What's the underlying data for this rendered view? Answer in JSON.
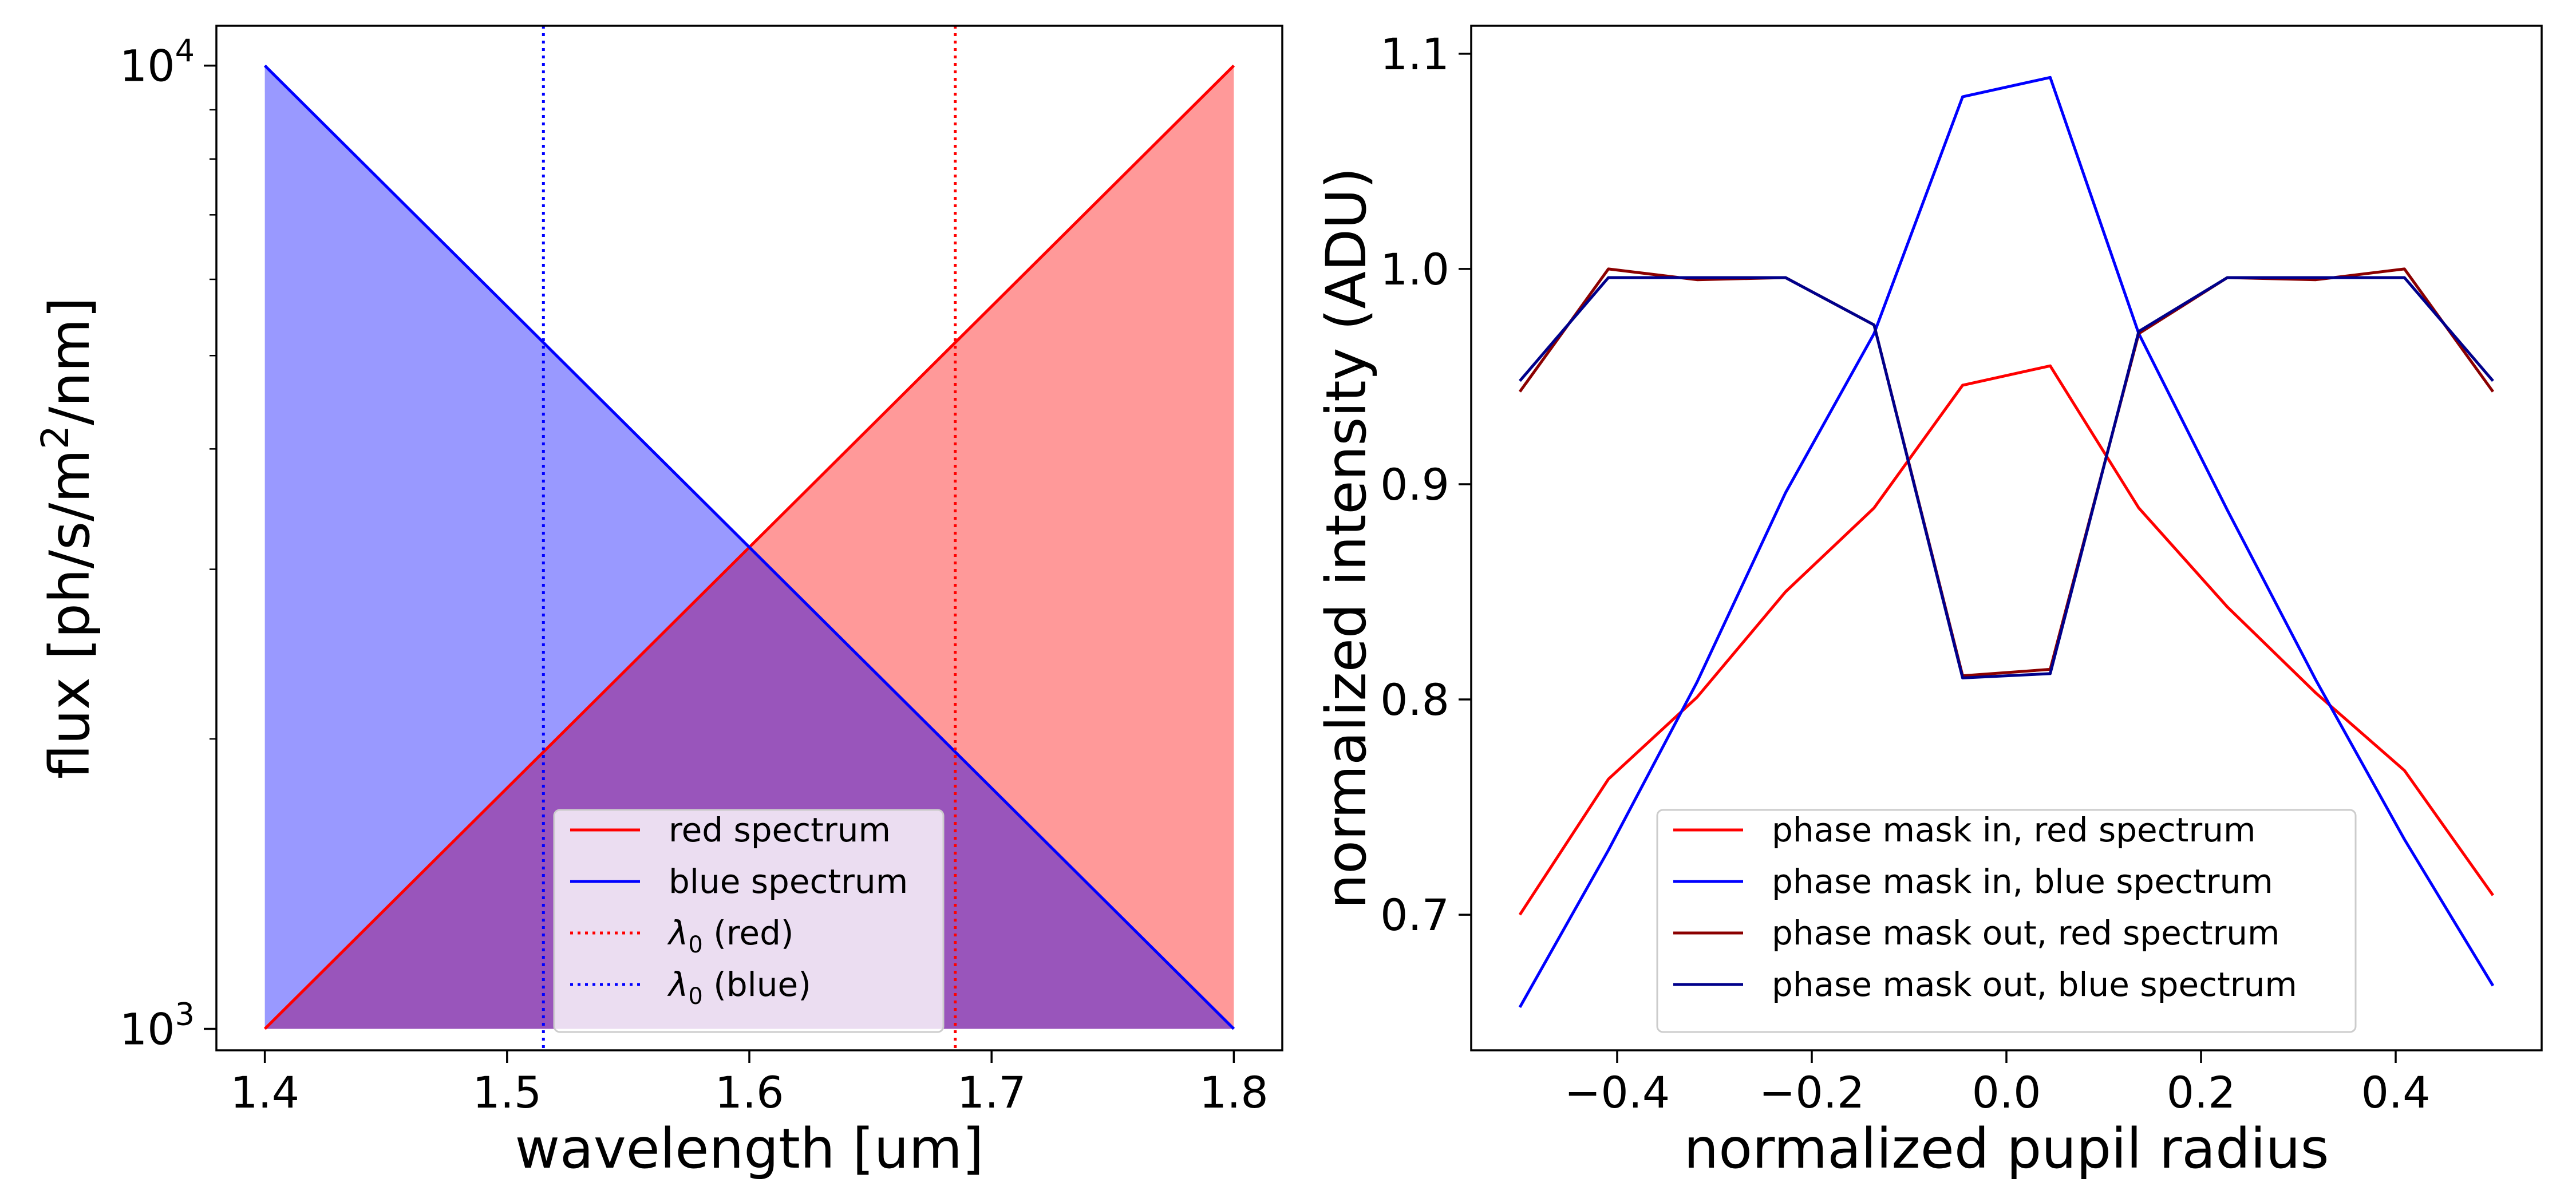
{
  "chart_data": [
    {
      "type": "area",
      "xlabel": "wavelength [um]",
      "ylabel_parts": [
        "flux [ph/s/m",
        "2",
        "/nm]"
      ],
      "xlim": [
        1.38,
        1.82
      ],
      "ylim": [
        950,
        11000
      ],
      "y_scale": "log",
      "x_ticks": [
        1.4,
        1.5,
        1.6,
        1.7,
        1.8
      ],
      "x_tick_labels": [
        "1.4",
        "1.5",
        "1.6",
        "1.7",
        "1.8"
      ],
      "y_ticks": [
        1000,
        10000
      ],
      "y_tick_labels": [
        {
          "base": "10",
          "exp": "3"
        },
        {
          "base": "10",
          "exp": "4"
        }
      ],
      "fill_floor": 1000,
      "series": [
        {
          "name": "red spectrum",
          "color": "#ff0000",
          "fill": "#ff9999",
          "x": [
            1.4,
            1.8
          ],
          "y": [
            1000,
            10000
          ]
        },
        {
          "name": "blue spectrum",
          "color": "#0000ff",
          "fill": "#9999ff",
          "x": [
            1.4,
            1.8
          ],
          "y": [
            10000,
            1000
          ]
        }
      ],
      "overlap_fill": "#9955bb",
      "vlines": [
        {
          "name_sym": "λ",
          "name_sub": "0",
          "name_rest": " (red)",
          "x": 1.685,
          "color": "#ff0000"
        },
        {
          "name_sym": "λ",
          "name_sub": "0",
          "name_rest": " (blue)",
          "x": 1.515,
          "color": "#0000ff"
        }
      ],
      "legend_placement": "lower-center"
    },
    {
      "type": "line",
      "xlabel": "normalized pupil radius",
      "ylabel": "normalized intensity (ADU)",
      "xlim": [
        -0.55,
        0.55
      ],
      "ylim": [
        0.637,
        1.113
      ],
      "x_ticks": [
        -0.4,
        -0.2,
        0.0,
        0.2,
        0.4
      ],
      "x_tick_labels": [
        "−0.4",
        "−0.2",
        "0.0",
        "0.2",
        "0.4"
      ],
      "y_ticks": [
        0.7,
        0.8,
        0.9,
        1.0,
        1.1
      ],
      "y_tick_labels": [
        "0.7",
        "0.8",
        "0.9",
        "1.0",
        "1.1"
      ],
      "x": [
        -0.5,
        -0.409,
        -0.318,
        -0.227,
        -0.136,
        -0.045,
        0.045,
        0.136,
        0.227,
        0.318,
        0.409,
        0.5
      ],
      "series": [
        {
          "name": "phase mask in, red spectrum",
          "color": "#ff0000",
          "values": [
            0.7,
            0.763,
            0.801,
            0.85,
            0.889,
            0.946,
            0.955,
            0.889,
            0.843,
            0.803,
            0.767,
            0.709
          ]
        },
        {
          "name": "phase mask in, blue spectrum",
          "color": "#0000ff",
          "values": [
            0.657,
            0.73,
            0.808,
            0.896,
            0.97,
            1.08,
            1.089,
            0.97,
            0.888,
            0.809,
            0.735,
            0.667
          ]
        },
        {
          "name": "phase mask out, red spectrum",
          "color": "#8b0000",
          "values": [
            0.943,
            1.0,
            0.995,
            0.996,
            0.974,
            0.811,
            0.814,
            0.97,
            0.996,
            0.995,
            1.0,
            0.943
          ]
        },
        {
          "name": "phase mask out, blue spectrum",
          "color": "#00008b",
          "values": [
            0.948,
            0.996,
            0.996,
            0.996,
            0.974,
            0.81,
            0.812,
            0.971,
            0.996,
            0.996,
            0.996,
            0.948
          ]
        }
      ],
      "legend_placement": "lower-center"
    }
  ]
}
